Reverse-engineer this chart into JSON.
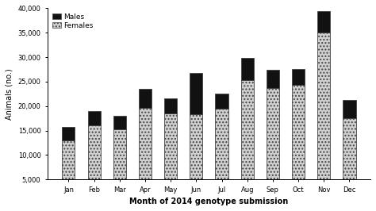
{
  "months": [
    "Jan",
    "Feb",
    "Mar",
    "Apr",
    "May",
    "Jun",
    "Jul",
    "Aug",
    "Sep",
    "Oct",
    "Nov",
    "Dec"
  ],
  "females": [
    13000,
    16000,
    15300,
    19700,
    18500,
    18300,
    19500,
    25300,
    23700,
    24300,
    35000,
    17500
  ],
  "males": [
    2700,
    3000,
    2700,
    3800,
    3000,
    8500,
    3000,
    4500,
    3700,
    3200,
    4500,
    3700
  ],
  "ylim": [
    5000,
    40000
  ],
  "yticks": [
    5000,
    10000,
    15000,
    20000,
    25000,
    30000,
    35000,
    40000
  ],
  "ytick_labels": [
    "5,000",
    "10,000",
    "15,000",
    "20,000",
    "25,000",
    "30,000",
    "35,000",
    "40,000"
  ],
  "ylabel": "Animals (no.)",
  "xlabel": "Month of 2014 genotype submission",
  "females_color": "#d0d0d0",
  "males_color": "#111111",
  "bar_edge_color": "#444444",
  "background_color": "#ffffff",
  "legend_males": "Males",
  "legend_females": "Females",
  "bar_width": 0.5
}
